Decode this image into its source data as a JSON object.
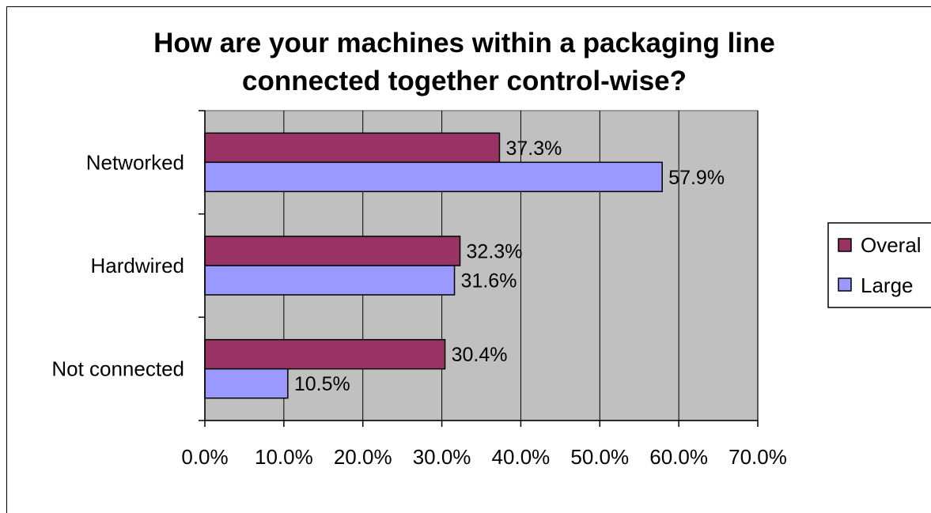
{
  "chart_data": {
    "type": "bar",
    "orientation": "horizontal",
    "title": [
      "How are your machines within a packaging line",
      "connected together control-wise?"
    ],
    "categories": [
      "Networked",
      "Hardwired",
      "Not connected"
    ],
    "series": [
      {
        "name": "Overal",
        "values": [
          37.3,
          32.3,
          30.4
        ],
        "labels": [
          "37.3%",
          "32.3%",
          "30.4%"
        ],
        "color": "#993366"
      },
      {
        "name": "Large",
        "values": [
          57.9,
          31.6,
          10.5
        ],
        "labels": [
          "57.9%",
          "31.6%",
          "10.5%"
        ],
        "color": "#9999ff"
      }
    ],
    "xlim": [
      0,
      70
    ],
    "xticks": [
      0,
      10,
      20,
      30,
      40,
      50,
      60,
      70
    ],
    "xtick_labels": [
      "0.0%",
      "10.0%",
      "20.0%",
      "30.0%",
      "40.0%",
      "50.0%",
      "60.0%",
      "70.0%"
    ],
    "plot_background": "#c0c0c0",
    "grid": true,
    "legend_position": "right"
  }
}
